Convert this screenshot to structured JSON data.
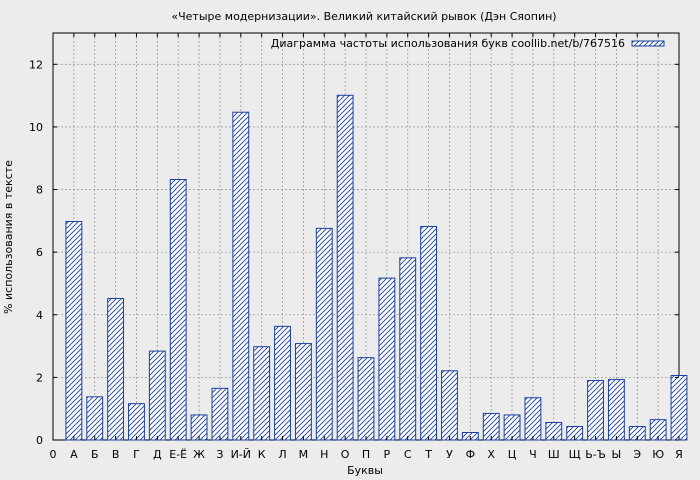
{
  "chart_data": {
    "type": "bar",
    "title": "«Четыре модернизации». Великий китайский рывок (Дэн Сяопин)",
    "xlabel": "Буквы",
    "ylabel": "% использования в тексте",
    "x_ticks": [
      "0",
      "А",
      "Б",
      "В",
      "Г",
      "Д",
      "Е-Ё",
      "Ж",
      "З",
      "И-Й",
      "К",
      "Л",
      "М",
      "Н",
      "О",
      "П",
      "Р",
      "С",
      "Т",
      "У",
      "Ф",
      "Х",
      "Ц",
      "Ч",
      "Ш",
      "Щ",
      "Ь-Ъ",
      "Ы",
      "Э",
      "Ю",
      "Я"
    ],
    "categories": [
      "А",
      "Б",
      "В",
      "Г",
      "Д",
      "Е-Ё",
      "Ж",
      "З",
      "И-Й",
      "К",
      "Л",
      "М",
      "Н",
      "О",
      "П",
      "Р",
      "С",
      "Т",
      "У",
      "Ф",
      "Х",
      "Ц",
      "Ч",
      "Ш",
      "Щ",
      "Ь-Ъ",
      "Ы",
      "Э",
      "Ю",
      "Я"
    ],
    "series": [
      {
        "name": "Диаграмма частоты использования букв coollib.net/b/767516",
        "values": [
          6.98,
          1.38,
          4.52,
          1.16,
          2.84,
          8.32,
          0.8,
          1.65,
          10.47,
          2.98,
          3.63,
          3.08,
          6.76,
          11.01,
          2.63,
          5.17,
          5.82,
          6.82,
          2.21,
          0.24,
          0.85,
          0.8,
          1.35,
          0.56,
          0.43,
          1.9,
          1.93,
          0.43,
          0.65,
          2.06
        ]
      }
    ],
    "ylim": [
      0,
      13
    ],
    "yticks": [
      0,
      2,
      4,
      6,
      8,
      10,
      12
    ],
    "grid": true,
    "legend": "top-right",
    "colors": {
      "bar_stroke": "#1b3fa0",
      "hatch": "#1b3fa0",
      "plot_bg": "#ececec",
      "grid": "#9a9a9a"
    }
  }
}
